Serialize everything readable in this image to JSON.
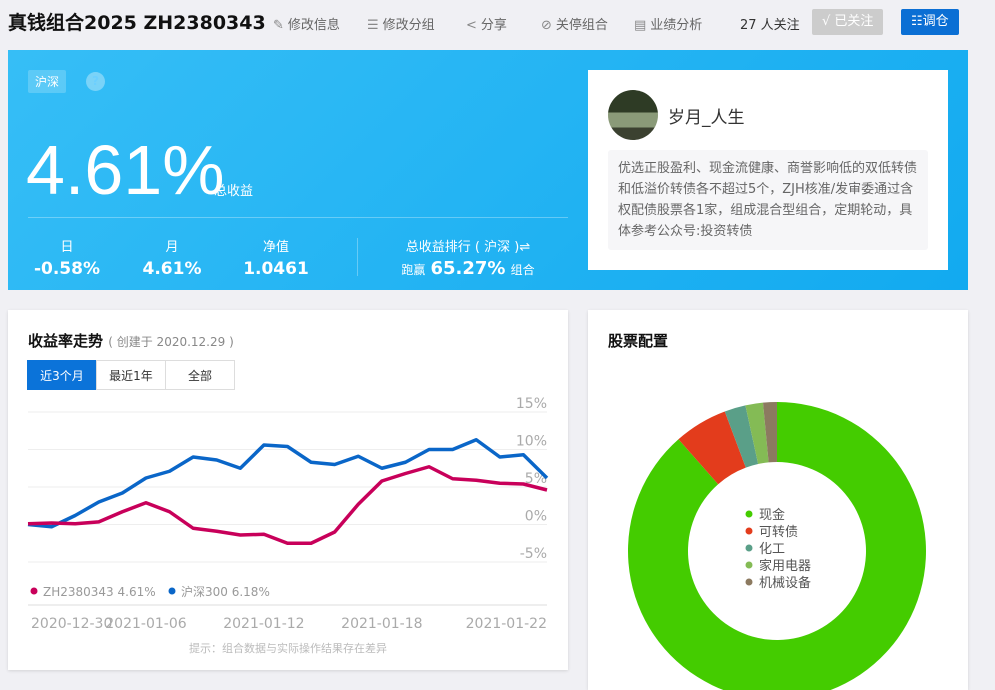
{
  "header": {
    "title": "真钱组合2025 ZH2380343",
    "actions": [
      {
        "icon": "pencil-icon",
        "glyph": "✎",
        "label": "修改信息"
      },
      {
        "icon": "list-icon",
        "glyph": "☰",
        "label": "修改分组"
      },
      {
        "icon": "share-icon",
        "glyph": "<",
        "label": "分享"
      },
      {
        "icon": "stop-icon",
        "glyph": "⊘",
        "label": "关停组合"
      },
      {
        "icon": "report-icon",
        "glyph": "▤",
        "label": "业绩分析"
      }
    ],
    "followers": "27 人关注",
    "followed": "√ 已关注",
    "adjust": "☷调仓"
  },
  "hero": {
    "market_tag": "沪深",
    "help": "?",
    "total_return": "4.61%",
    "total_label": "总收益",
    "stats": [
      {
        "label": "日",
        "value": "-0.58%"
      },
      {
        "label": "月",
        "value": "4.61%"
      },
      {
        "label": "净值",
        "value": "1.0461"
      }
    ],
    "rank_label": "总收益排行 ( 沪深 )⇌",
    "rank_prefix": "跑赢",
    "rank_value": "65.27%",
    "rank_suffix": "组合"
  },
  "profile": {
    "name": "岁月_人生",
    "description": "优选正股盈利、现金流健康、商誉影响低的双低转债和低溢价转债各不超过5个，ZJH核准/发审委通过含权配债股票各1家，组成混合型组合，定期轮动，具体参考公众号:投资转债"
  },
  "trend": {
    "title": "收益率走势",
    "created": "( 创建于 2020.12.29 )",
    "tabs": [
      "近3个月",
      "最近1年",
      "全部"
    ],
    "active_tab": 0,
    "note": "提示：组合数据与实际操作结果存在差异"
  },
  "allocation": {
    "title": "股票配置"
  },
  "colors": {
    "accent": "#0b73d9",
    "portfolio": "#c8005a",
    "index": "#0a66c8"
  },
  "chart_data": [
    {
      "type": "line",
      "ylim": [
        -5,
        15
      ],
      "yticks": [
        "15%",
        "10%",
        "5%",
        "0%",
        "-5%"
      ],
      "ytick_values": [
        15,
        10,
        5,
        0,
        -5
      ],
      "xticks": [
        "2020-12-30",
        "2021-01-06",
        "2021-01-12",
        "2021-01-18",
        "2021-01-22"
      ],
      "xtick_index": [
        0,
        5,
        10,
        15,
        22
      ],
      "grid": true,
      "legend": "bottom-left",
      "series": [
        {
          "name": "ZH2380343 4.61%",
          "color": "#c8005a",
          "values": [
            0.1,
            0.2,
            0.1,
            0.35,
            1.7,
            2.9,
            1.7,
            -0.5,
            -0.9,
            -1.4,
            -1.3,
            -2.5,
            -2.5,
            -1.0,
            2.7,
            5.8,
            6.8,
            7.7,
            6.1,
            5.9,
            5.5,
            5.4,
            4.6
          ]
        },
        {
          "name": "沪深300 6.18%",
          "color": "#0a66c8",
          "values": [
            0,
            -0.3,
            1.2,
            3.0,
            4.2,
            6.2,
            7.1,
            9.0,
            8.6,
            7.5,
            10.6,
            10.4,
            8.3,
            8.0,
            9.1,
            7.5,
            8.3,
            10.0,
            10.0,
            11.3,
            9.0,
            9.3,
            6.2
          ]
        }
      ]
    },
    {
      "type": "pie",
      "donut": true,
      "legend": "center",
      "labels": [
        "现金",
        "可转债",
        "化工",
        "家用电器",
        "机械设备"
      ],
      "values": [
        88.5,
        5.8,
        2.3,
        1.9,
        1.5
      ],
      "colors": [
        "#44cc00",
        "#e33c1c",
        "#5a9f88",
        "#84bb55",
        "#8c7a60"
      ]
    }
  ]
}
